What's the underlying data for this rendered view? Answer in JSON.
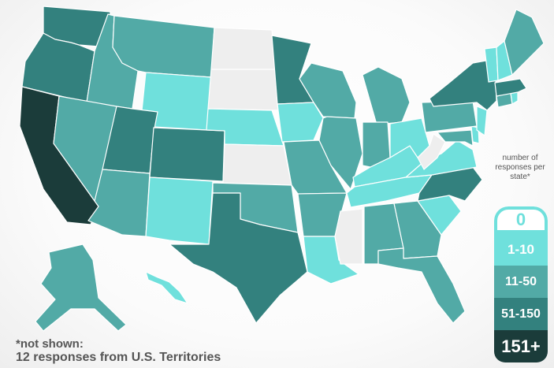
{
  "legend": {
    "title": "number of responses per state*",
    "bins": [
      {
        "label": "0",
        "color": "#eeeeee"
      },
      {
        "label": "1-10",
        "color": "#6fe0dc"
      },
      {
        "label": "11-50",
        "color": "#52aaa6"
      },
      {
        "label": "51-150",
        "color": "#33817e"
      },
      {
        "label": "151+",
        "color": "#1b3c3a"
      }
    ]
  },
  "footnote": {
    "line1": "*not shown:",
    "line2": "12 responses from U.S. Territories"
  },
  "states": {
    "WA": "51-150",
    "OR": "51-150",
    "CA": "151+",
    "ID": "11-50",
    "NV": "11-50",
    "MT": "11-50",
    "WY": "1-10",
    "UT": "51-150",
    "AZ": "11-50",
    "CO": "51-150",
    "NM": "1-10",
    "ND": "0",
    "SD": "0",
    "NE": "1-10",
    "KS": "0",
    "OK": "11-50",
    "TX": "51-150",
    "MN": "51-150",
    "IA": "1-10",
    "MO": "11-50",
    "AR": "11-50",
    "LA": "1-10",
    "WI": "11-50",
    "IL": "11-50",
    "MS": "0",
    "MI": "11-50",
    "IN": "11-50",
    "KY": "1-10",
    "TN": "1-10",
    "AL": "11-50",
    "OH": "1-10",
    "GA": "11-50",
    "FL": "11-50",
    "SC": "1-10",
    "NC": "51-150",
    "VA": "1-10",
    "WV": "0",
    "MD": "11-50",
    "DE": "1-10",
    "NJ": "1-10",
    "PA": "11-50",
    "NY": "51-150",
    "CT": "11-50",
    "RI": "1-10",
    "MA": "51-150",
    "VT": "1-10",
    "NH": "1-10",
    "ME": "11-50",
    "AK": "11-50",
    "HI": "1-10"
  }
}
